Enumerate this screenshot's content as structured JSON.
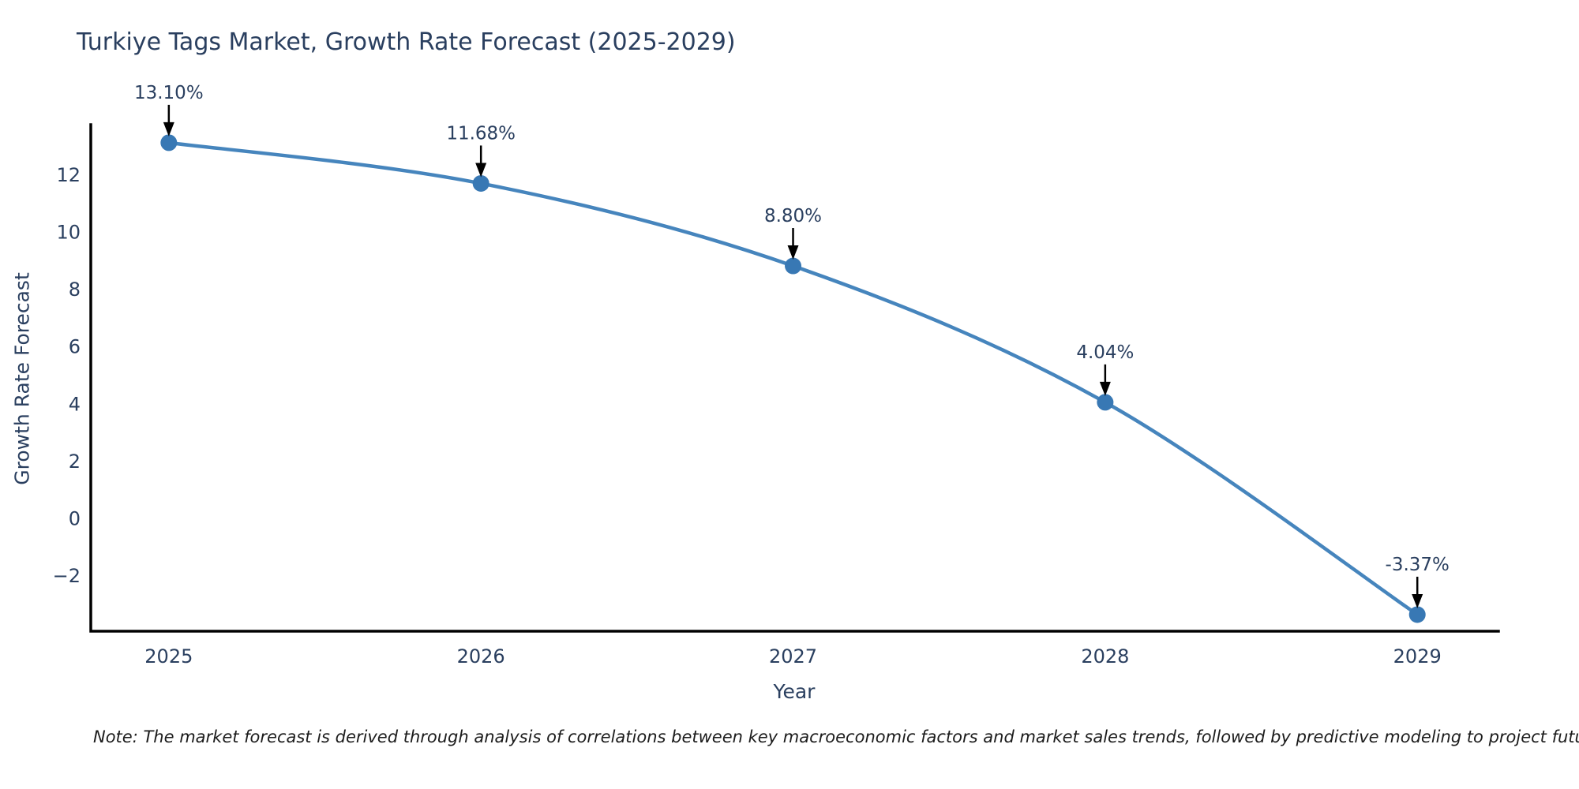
{
  "title": "Turkiye Tags Market, Growth Rate Forecast (2025-2029)",
  "note": "Note: The market forecast is derived through analysis of correlations between key macroeconomic factors and market sales trends, followed by predictive modeling to project future sales",
  "chart_data": {
    "type": "line",
    "title": "Turkiye Tags Market, Growth Rate Forecast (2025-2029)",
    "xlabel": "Year",
    "ylabel": "Growth Rate Forecast",
    "x": [
      2025,
      2026,
      2027,
      2028,
      2029
    ],
    "values": [
      13.1,
      11.68,
      8.8,
      4.04,
      -3.37
    ],
    "point_labels": [
      "13.10%",
      "11.68%",
      "8.80%",
      "4.04%",
      "-3.37%"
    ],
    "x_ticks": [
      "2025",
      "2026",
      "2027",
      "2028",
      "2029"
    ],
    "y_ticks": [
      -2,
      0,
      2,
      4,
      6,
      8,
      10,
      12
    ],
    "xlim": [
      2024.75,
      2029.26
    ],
    "ylim": [
      -3.95,
      13.73
    ],
    "grid": false,
    "legend": "none",
    "smooth": true,
    "line_color": "#4685bd",
    "marker_color": "#3878b4",
    "arrow_color": "#000000",
    "axis_color": "#000000",
    "text_color": "#2a3f5f"
  }
}
